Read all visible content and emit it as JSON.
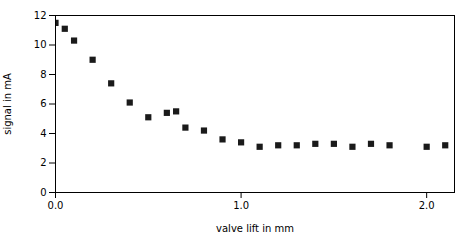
{
  "chart_data": {
    "type": "scatter",
    "x": [
      0.0,
      0.05,
      0.1,
      0.2,
      0.3,
      0.4,
      0.5,
      0.6,
      0.65,
      0.7,
      0.8,
      0.9,
      1.0,
      1.1,
      1.2,
      1.3,
      1.4,
      1.5,
      1.6,
      1.7,
      1.8,
      2.0,
      2.1
    ],
    "values": [
      11.5,
      11.1,
      10.3,
      9.0,
      7.4,
      6.1,
      5.1,
      5.4,
      5.5,
      4.4,
      4.2,
      3.6,
      3.4,
      3.1,
      3.2,
      3.2,
      3.3,
      3.3,
      3.1,
      3.3,
      3.2,
      3.1,
      3.2
    ],
    "xlabel": "valve lift in mm",
    "ylabel": "signal in mA",
    "xlim": [
      0,
      2.15
    ],
    "ylim": [
      0,
      12
    ],
    "xticks": [
      0,
      1,
      2
    ],
    "yticks": [
      0,
      2,
      4,
      6,
      8,
      10,
      12
    ],
    "color": "#1a1a1a",
    "marker": "square"
  }
}
